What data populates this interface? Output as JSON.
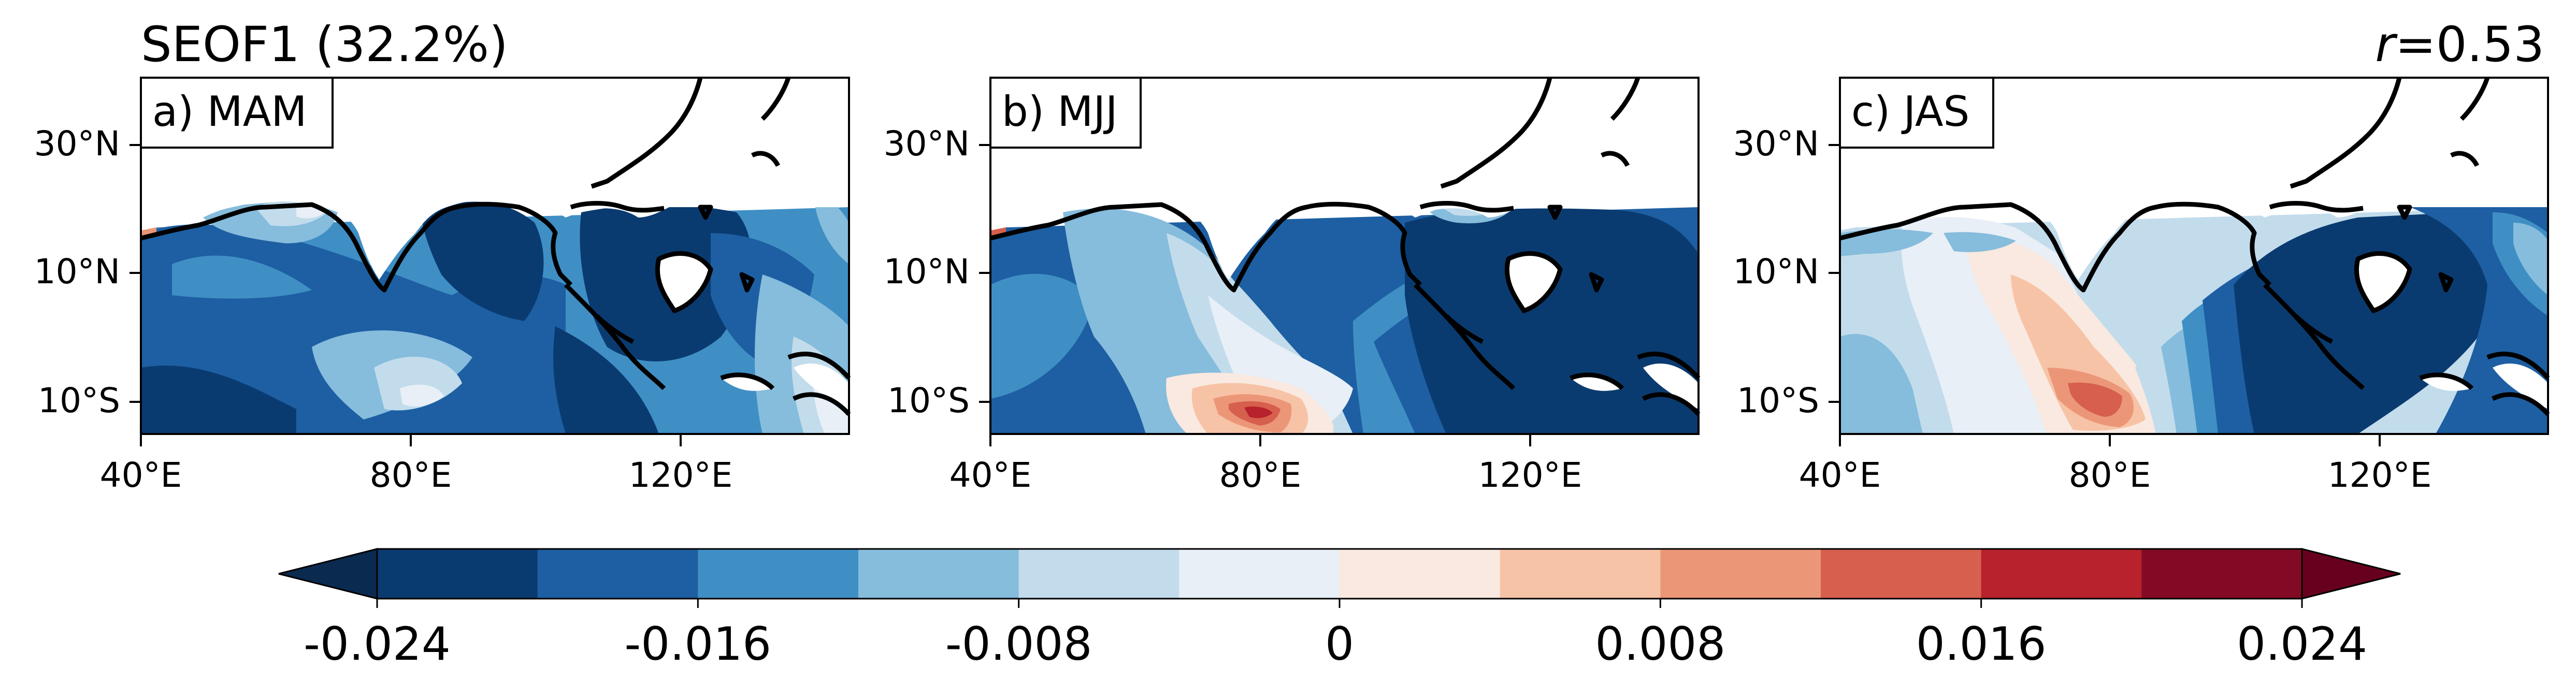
{
  "figure": {
    "title": "SEOF1 (32.2%)",
    "correlation": {
      "symbol": "r",
      "value": "=0.53"
    }
  },
  "panels": [
    {
      "id": "MAM",
      "label": "a) MAM"
    },
    {
      "id": "MJJ",
      "label": "b) MJJ"
    },
    {
      "id": "JAS",
      "label": "c) JAS"
    }
  ],
  "axes": {
    "y_ticks": [
      "30°N",
      "10°N",
      "10°S"
    ],
    "x_ticks": [
      "40°E",
      "80°E",
      "120°E"
    ]
  },
  "colorbar": {
    "tick_labels": [
      "-0.024",
      "-0.016",
      "-0.008",
      "0",
      "0.008",
      "0.016",
      "0.024"
    ],
    "colors": [
      "#0a3b70",
      "#1d5fa2",
      "#3f8fc5",
      "#86bcdc",
      "#c2dcec",
      "#e8eff6",
      "#f9e9e0",
      "#f7c3a6",
      "#ec9678",
      "#d6604d",
      "#b7222c",
      "#830a24"
    ],
    "extend_low_color": "#0a2a50",
    "extend_high_color": "#67001f"
  }
}
